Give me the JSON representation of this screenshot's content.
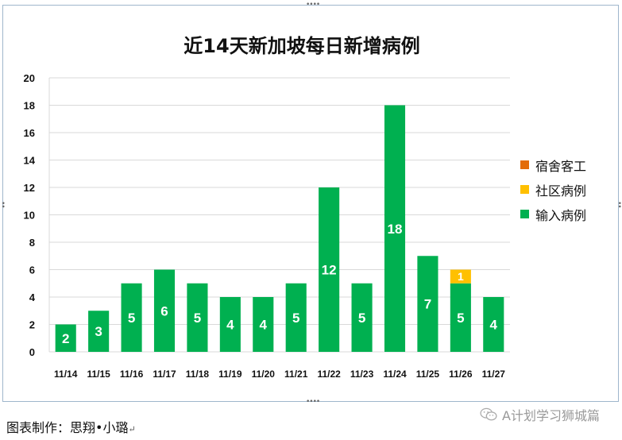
{
  "chart_data": {
    "type": "bar",
    "stacked": true,
    "title": "近14天新加坡每日新增病例",
    "categories": [
      "11/14",
      "11/15",
      "11/16",
      "11/17",
      "11/18",
      "11/19",
      "11/20",
      "11/21",
      "11/22",
      "11/23",
      "11/24",
      "11/25",
      "11/26",
      "11/27"
    ],
    "series": [
      {
        "name": "输入病例",
        "color": "#00b050",
        "values": [
          2,
          3,
          5,
          6,
          5,
          4,
          4,
          5,
          12,
          5,
          18,
          7,
          5,
          4
        ]
      },
      {
        "name": "社区病例",
        "color": "#ffc000",
        "values": [
          0,
          0,
          0,
          0,
          0,
          0,
          0,
          0,
          0,
          0,
          0,
          0,
          1,
          0
        ]
      },
      {
        "name": "宿舍客工",
        "color": "#e36c09",
        "values": [
          0,
          0,
          0,
          0,
          0,
          0,
          0,
          0,
          0,
          0,
          0,
          0,
          0,
          0
        ]
      }
    ],
    "ylim": [
      0,
      20
    ],
    "yticks": [
      0,
      2,
      4,
      6,
      8,
      10,
      12,
      14,
      16,
      18,
      20
    ],
    "grid": true,
    "legend_position": "right",
    "legend_order": [
      "宿舍客工",
      "社区病例",
      "输入病例"
    ]
  },
  "credit": "图表制作：思翔•小璐",
  "credit_mark": "↵",
  "watermark": "A计划学习狮城篇",
  "watermark_icon": "wechat-icon"
}
